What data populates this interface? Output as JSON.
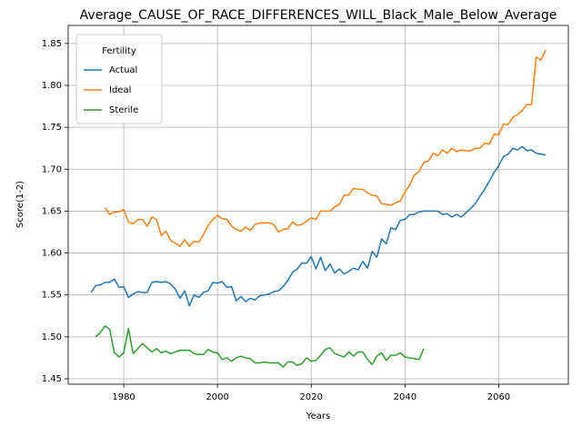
{
  "chart_data": {
    "type": "line",
    "title": "Average_CAUSE_OF_RACE_DIFFERENCES_WILL_Black_Male_Below_Average",
    "xlabel": "Years",
    "ylabel": "Score(1-2)",
    "legend_title": "Fertility",
    "legend": "upper left",
    "grid": true,
    "xlim": [
      1968.15,
      2074.85
    ],
    "ylim": [
      1.4435,
      1.8715
    ],
    "xticks": [
      1980,
      2000,
      2020,
      2040,
      2060
    ],
    "yticks": [
      1.45,
      {
        "value": 1.5,
        "label": "1.50"
      },
      1.55,
      {
        "value": 1.6,
        "label": "1.60"
      },
      1.65,
      {
        "value": 1.7,
        "label": "1.70"
      },
      1.75,
      {
        "value": 1.8,
        "label": "1.80"
      },
      1.85
    ],
    "x": [
      1973,
      1974,
      1975,
      1976,
      1977,
      1978,
      1979,
      1980,
      1981,
      1982,
      1983,
      1984,
      1985,
      1986,
      1987,
      1988,
      1989,
      1990,
      1991,
      1992,
      1993,
      1994,
      1995,
      1996,
      1997,
      1998,
      1999,
      2000,
      2001,
      2002,
      2003,
      2004,
      2005,
      2006,
      2007,
      2008,
      2009,
      2010,
      2011,
      2012,
      2013,
      2014,
      2015,
      2016,
      2017,
      2018,
      2019,
      2020,
      2021,
      2022,
      2023,
      2024,
      2025,
      2026,
      2027,
      2028,
      2029,
      2030,
      2031,
      2032,
      2033,
      2034,
      2035,
      2036,
      2037,
      2038,
      2039,
      2040,
      2041,
      2042,
      2043,
      2044,
      2045,
      2046,
      2047,
      2048,
      2049,
      2050,
      2051,
      2052,
      2053,
      2054,
      2055,
      2056,
      2057,
      2058,
      2059,
      2060,
      2061,
      2062,
      2063,
      2064,
      2065,
      2066,
      2067,
      2068,
      2069,
      2070
    ],
    "series": [
      {
        "name": "Actual",
        "color": "#1f77b4",
        "values": [
          1.553,
          1.561,
          1.562,
          1.565,
          1.565,
          1.569,
          1.559,
          1.56,
          1.547,
          1.551,
          1.554,
          1.553,
          1.553,
          1.565,
          1.566,
          1.565,
          1.566,
          1.563,
          1.557,
          1.546,
          1.555,
          1.537,
          1.55,
          1.547,
          1.553,
          1.555,
          1.565,
          1.564,
          1.566,
          1.559,
          1.56,
          1.543,
          1.548,
          1.542,
          1.546,
          1.544,
          1.549,
          1.55,
          1.551,
          1.554,
          1.555,
          1.56,
          1.567,
          1.577,
          1.581,
          1.588,
          1.588,
          1.596,
          1.581,
          1.595,
          1.579,
          1.587,
          1.576,
          1.581,
          1.575,
          1.578,
          1.582,
          1.58,
          1.59,
          1.582,
          1.602,
          1.595,
          1.617,
          1.611,
          1.63,
          1.628,
          1.639,
          1.64,
          1.646,
          1.646,
          1.649,
          1.65,
          1.65,
          1.65,
          1.65,
          1.646,
          1.647,
          1.643,
          1.646,
          1.643,
          1.648,
          1.653,
          1.659,
          1.668,
          1.676,
          1.686,
          1.696,
          1.704,
          1.715,
          1.718,
          1.725,
          1.723,
          1.727,
          1.722,
          1.723,
          1.719,
          1.718,
          1.717
        ]
      },
      {
        "name": "Ideal",
        "color": "#ff7f0e",
        "values": [
          null,
          null,
          null,
          1.654,
          1.646,
          1.649,
          1.649,
          1.652,
          1.637,
          1.635,
          1.64,
          1.64,
          1.632,
          1.643,
          1.64,
          1.621,
          1.626,
          1.615,
          1.612,
          1.608,
          1.616,
          1.608,
          1.614,
          1.613,
          1.622,
          1.633,
          1.64,
          1.645,
          1.641,
          1.64,
          1.632,
          1.628,
          1.626,
          1.631,
          1.627,
          1.634,
          1.636,
          1.636,
          1.636,
          1.634,
          1.625,
          1.628,
          1.629,
          1.637,
          1.633,
          1.634,
          1.638,
          1.642,
          1.64,
          1.65,
          1.65,
          1.65,
          1.655,
          1.658,
          1.669,
          1.669,
          1.677,
          1.676,
          1.676,
          1.672,
          1.669,
          1.668,
          1.659,
          1.658,
          1.657,
          1.66,
          1.662,
          1.673,
          1.681,
          1.693,
          1.697,
          1.708,
          1.71,
          1.719,
          1.716,
          1.723,
          1.719,
          1.725,
          1.721,
          1.723,
          1.722,
          1.722,
          1.725,
          1.725,
          1.731,
          1.73,
          1.742,
          1.741,
          1.754,
          1.753,
          1.762,
          1.765,
          1.77,
          1.777,
          1.777,
          1.834,
          1.83,
          1.842
        ]
      },
      {
        "name": "Sterile",
        "color": "#2ca02c",
        "values": [
          null,
          1.5,
          1.505,
          1.513,
          1.509,
          1.481,
          1.476,
          1.481,
          1.51,
          1.48,
          1.486,
          1.492,
          1.487,
          1.482,
          1.486,
          1.481,
          1.483,
          1.48,
          1.482,
          1.484,
          1.484,
          1.484,
          1.48,
          1.479,
          1.479,
          1.485,
          1.482,
          1.481,
          1.473,
          1.475,
          1.471,
          1.475,
          1.477,
          1.475,
          1.474,
          1.469,
          1.469,
          1.47,
          1.469,
          1.469,
          1.469,
          1.464,
          1.47,
          1.47,
          1.466,
          1.468,
          1.475,
          1.471,
          1.472,
          1.478,
          1.485,
          1.487,
          1.48,
          1.478,
          1.476,
          1.482,
          1.477,
          1.482,
          1.482,
          1.473,
          1.467,
          1.477,
          1.481,
          1.472,
          1.478,
          1.478,
          1.481,
          1.476,
          1.475,
          1.474,
          1.473,
          1.486,
          null,
          null,
          null,
          null,
          null,
          null,
          null,
          null,
          null,
          null,
          null,
          null,
          null,
          null,
          null,
          null,
          null,
          null,
          null,
          null,
          null,
          null,
          null,
          null,
          null,
          null
        ]
      }
    ]
  }
}
